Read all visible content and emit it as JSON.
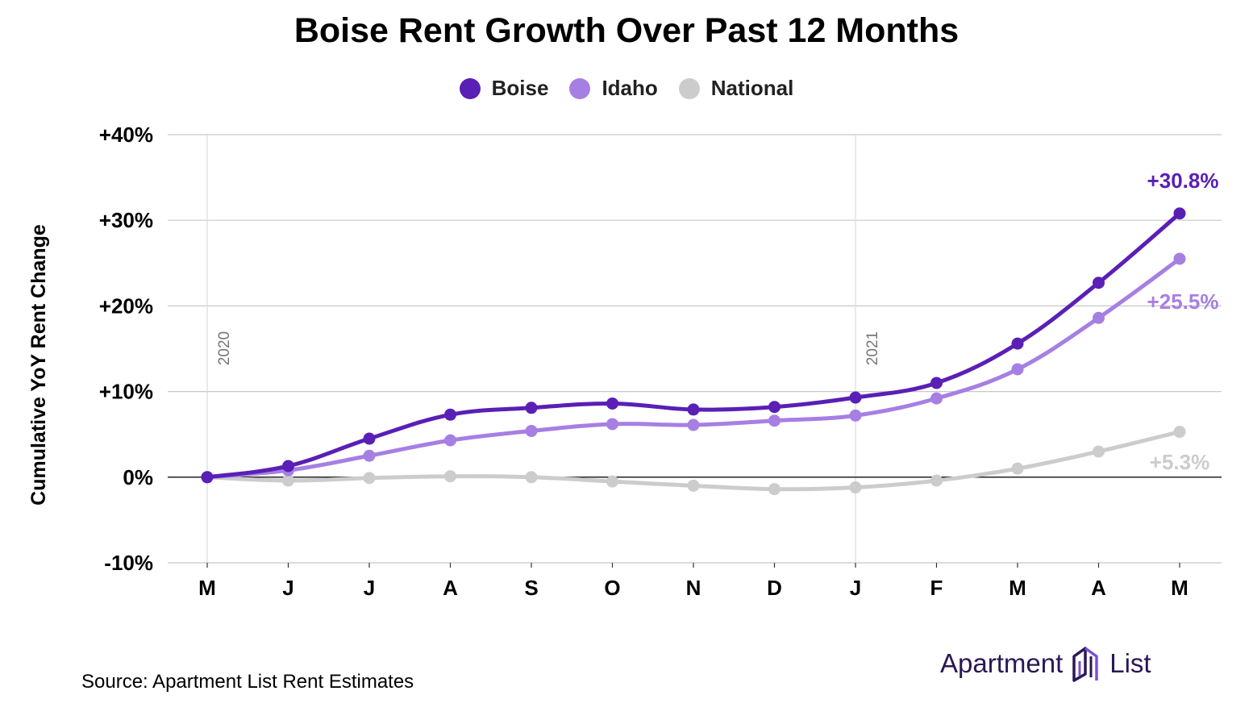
{
  "title": "Boise Rent Growth Over Past 12 Months",
  "source": "Source: Apartment List Rent Estimates",
  "brand": {
    "word1": "Apartment",
    "word2": "List",
    "icon": "apartment-list-logo-icon"
  },
  "chart_data": {
    "type": "line",
    "title": "Boise Rent Growth Over Past 12 Months",
    "ylabel": "Cumulative YoY Rent Change",
    "xlabel": "",
    "categories": [
      "M",
      "J",
      "J",
      "A",
      "S",
      "O",
      "N",
      "D",
      "J",
      "F",
      "M",
      "A",
      "M"
    ],
    "ylim": [
      -10,
      40
    ],
    "yticks": [
      -10,
      0,
      10,
      20,
      30,
      40
    ],
    "ytick_labels": [
      "-10%",
      "0%",
      "+10%",
      "+20%",
      "+30%",
      "+40%"
    ],
    "grid": true,
    "legend": "top-center",
    "year_markers": [
      {
        "index": 0,
        "label": "2020"
      },
      {
        "index": 8,
        "label": "2021"
      }
    ],
    "series": [
      {
        "name": "Boise",
        "color": "#5a1fb5",
        "end_label": "+30.8%",
        "values": [
          0,
          1.3,
          4.5,
          7.3,
          8.1,
          8.6,
          7.9,
          8.2,
          9.3,
          11.0,
          15.6,
          22.7,
          30.8
        ]
      },
      {
        "name": "Idaho",
        "color": "#a67fe3",
        "end_label": "+25.5%",
        "values": [
          0,
          0.8,
          2.5,
          4.3,
          5.4,
          6.2,
          6.1,
          6.6,
          7.2,
          9.2,
          12.6,
          18.6,
          25.5
        ]
      },
      {
        "name": "National",
        "color": "#cccccc",
        "end_label": "+5.3%",
        "values": [
          0,
          -0.4,
          -0.1,
          0.1,
          0.0,
          -0.5,
          -1.0,
          -1.4,
          -1.2,
          -0.4,
          1.0,
          3.0,
          5.3
        ]
      }
    ]
  }
}
